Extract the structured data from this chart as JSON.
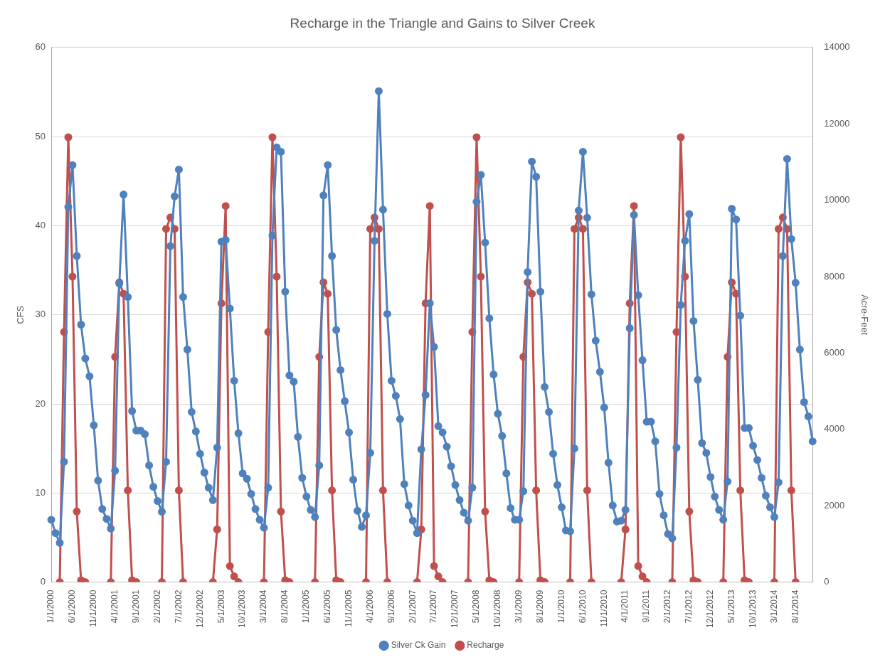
{
  "chart_data": {
    "type": "line",
    "title": "Recharge in the Triangle and Gains to Silver Creek",
    "ylabel": "CFS",
    "y2label": "Acre-Feet",
    "categories": [
      "1/1/2000",
      null,
      null,
      null,
      null,
      "6/1/2000",
      null,
      null,
      null,
      null,
      "11/1/2000",
      null,
      null,
      null,
      null,
      "4/1/2001",
      null,
      null,
      null,
      null,
      "9/1/2001",
      null,
      null,
      null,
      null,
      "2/1/2002",
      null,
      null,
      null,
      null,
      "7/1/2002",
      null,
      null,
      null,
      null,
      "12/1/2002",
      null,
      null,
      null,
      null,
      "5/1/2003",
      null,
      null,
      null,
      null,
      "10/1/2003",
      null,
      null,
      null,
      null,
      "3/1/2004",
      null,
      null,
      null,
      null,
      "8/1/2004",
      null,
      null,
      null,
      null,
      "1/1/2005",
      null,
      null,
      null,
      null,
      "6/1/2005",
      null,
      null,
      null,
      null,
      "11/1/2005",
      null,
      null,
      null,
      null,
      "4/1/2006",
      null,
      null,
      null,
      null,
      "9/1/2006",
      null,
      null,
      null,
      null,
      "2/1/2007",
      null,
      null,
      null,
      null,
      "7/1/2007",
      null,
      null,
      null,
      null,
      "12/1/2007",
      null,
      null,
      null,
      null,
      "5/1/2008",
      null,
      null,
      null,
      null,
      "10/1/2008",
      null,
      null,
      null,
      null,
      "3/1/2009",
      null,
      null,
      null,
      null,
      "8/1/2009",
      null,
      null,
      null,
      null,
      "1/1/2010",
      null,
      null,
      null,
      null,
      "6/1/2010",
      null,
      null,
      null,
      null,
      "11/1/2010",
      null,
      null,
      null,
      null,
      "4/1/2011",
      null,
      null,
      null,
      null,
      "9/1/2011",
      null,
      null,
      null,
      null,
      "2/1/2012",
      null,
      null,
      null,
      null,
      "7/1/2012",
      null,
      null,
      null,
      null,
      "12/1/2012",
      null,
      null,
      null,
      null,
      "5/1/2013",
      null,
      null,
      null,
      null,
      "10/1/2013",
      null,
      null,
      null,
      null,
      "3/1/2014",
      null,
      null,
      null,
      null,
      "8/1/2014",
      null,
      null,
      null,
      null
    ],
    "series": [
      {
        "name": "Silver Ck Gain",
        "color": "#4f81bd",
        "values": [
          7.0,
          5.5,
          4.4,
          13.5,
          42.1,
          46.8,
          36.6,
          28.9,
          25.1,
          23.1,
          17.6,
          11.4,
          8.2,
          7.1,
          6.0,
          12.5,
          33.5,
          43.5,
          32.0,
          19.2,
          17.0,
          17.0,
          16.6,
          13.1,
          10.7,
          9.1,
          7.9,
          13.5,
          37.7,
          43.3,
          46.3,
          32.0,
          26.1,
          19.1,
          16.9,
          14.4,
          12.3,
          10.6,
          9.2,
          15.1,
          38.2,
          38.4,
          30.7,
          22.6,
          16.7,
          12.2,
          11.6,
          9.9,
          8.2,
          7.0,
          6.1,
          10.6,
          38.9,
          48.8,
          48.3,
          32.6,
          23.2,
          22.5,
          16.3,
          11.7,
          9.6,
          8.1,
          7.3,
          13.1,
          43.4,
          46.8,
          36.6,
          28.3,
          23.8,
          20.3,
          16.8,
          11.5,
          8.0,
          6.2,
          7.5,
          14.5,
          38.3,
          55.1,
          41.8,
          30.1,
          22.6,
          20.9,
          18.3,
          11.0,
          8.6,
          6.9,
          5.5,
          14.9,
          21.0,
          31.3,
          26.4,
          17.5,
          16.8,
          15.2,
          13.0,
          10.9,
          9.2,
          7.8,
          6.9,
          10.6,
          42.7,
          45.7,
          38.1,
          29.6,
          23.3,
          18.9,
          16.4,
          12.2,
          8.3,
          7.0,
          7.0,
          10.2,
          34.8,
          47.2,
          45.5,
          32.6,
          21.9,
          19.1,
          14.4,
          10.9,
          8.4,
          5.8,
          5.7,
          15.0,
          41.7,
          48.3,
          40.9,
          32.3,
          27.1,
          23.6,
          19.6,
          13.4,
          8.6,
          6.8,
          6.9,
          8.1,
          28.5,
          41.2,
          32.2,
          24.9,
          18.0,
          18.0,
          15.8,
          9.9,
          7.5,
          5.4,
          4.9,
          15.1,
          31.1,
          38.3,
          41.3,
          29.3,
          22.7,
          15.6,
          14.5,
          11.8,
          9.6,
          8.1,
          7.0,
          11.3,
          41.9,
          40.7,
          29.9,
          17.3,
          17.3,
          15.3,
          13.7,
          11.7,
          9.7,
          8.4,
          7.3,
          11.2,
          36.6,
          47.5,
          38.5,
          33.6,
          26.1,
          20.2,
          18.6,
          15.8
        ]
      },
      {
        "name": "Recharge",
        "color": "#c0504d",
        "axis": "y2",
        "values": [
          null,
          null,
          0,
          6550,
          11650,
          8000,
          1850,
          50,
          0,
          null,
          null,
          null,
          null,
          null,
          0,
          5900,
          7850,
          7550,
          2400,
          50,
          0,
          null,
          null,
          null,
          null,
          null,
          0,
          9250,
          9550,
          9250,
          2400,
          0,
          null,
          null,
          null,
          null,
          null,
          null,
          0,
          1380,
          7300,
          9850,
          420,
          150,
          0,
          null,
          null,
          null,
          null,
          null,
          0,
          6550,
          11650,
          8000,
          1850,
          50,
          0,
          null,
          null,
          null,
          null,
          null,
          0,
          5900,
          7850,
          7550,
          2400,
          50,
          0,
          null,
          null,
          null,
          null,
          null,
          0,
          9250,
          9550,
          9250,
          2400,
          0,
          null,
          null,
          null,
          null,
          null,
          null,
          0,
          1380,
          7300,
          9850,
          420,
          150,
          0,
          null,
          null,
          null,
          null,
          null,
          0,
          6550,
          11650,
          8000,
          1850,
          50,
          0,
          null,
          null,
          null,
          null,
          null,
          0,
          5900,
          7850,
          7550,
          2400,
          50,
          0,
          null,
          null,
          null,
          null,
          null,
          0,
          9250,
          9550,
          9250,
          2400,
          0,
          null,
          null,
          null,
          null,
          null,
          null,
          0,
          1380,
          7300,
          9850,
          420,
          150,
          0,
          null,
          null,
          null,
          null,
          null,
          0,
          6550,
          11650,
          8000,
          1850,
          50,
          0,
          null,
          null,
          null,
          null,
          null,
          0,
          5900,
          7850,
          7550,
          2400,
          50,
          0,
          null,
          null,
          null,
          null,
          null,
          0,
          9250,
          9550,
          9250,
          2400,
          0,
          null,
          null,
          null,
          null
        ]
      }
    ],
    "ylim": [
      0,
      60
    ],
    "yticks": [
      0,
      10,
      20,
      30,
      40,
      50,
      60
    ],
    "y2lim": [
      0,
      14000
    ],
    "y2ticks": [
      0,
      2000,
      4000,
      6000,
      8000,
      10000,
      12000,
      14000
    ],
    "grid": "y",
    "legend": "bottom",
    "marker": "circle",
    "line_style": "solid"
  }
}
